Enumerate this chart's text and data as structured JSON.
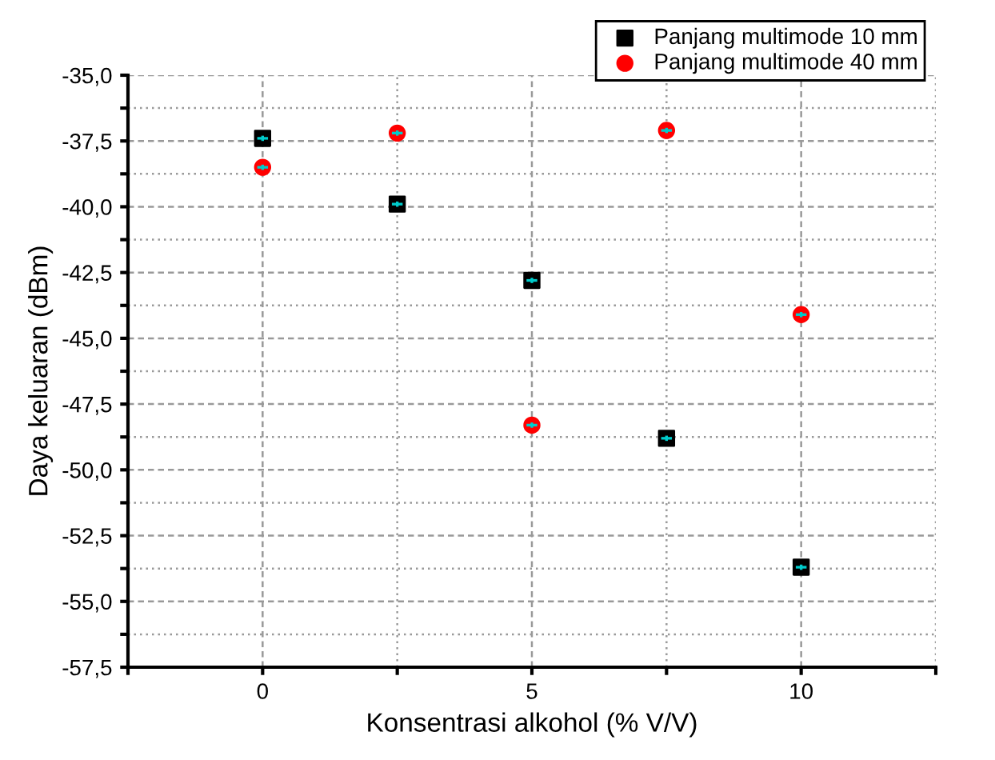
{
  "chart_data": {
    "type": "scatter",
    "xlabel": "Konsentrasi alkohol (% V/V)",
    "ylabel": "Daya keluaran (dBm)",
    "x": [
      0,
      2.5,
      5,
      7.5,
      10
    ],
    "series": [
      {
        "name": "Panjang multimode 10 mm",
        "color": "#000000",
        "marker": "square",
        "values": [
          -37.4,
          -39.9,
          -42.8,
          -48.8,
          -53.7
        ],
        "errors": [
          0.1,
          0.1,
          0.1,
          0.1,
          0.1
        ],
        "xerrors": [
          0.1,
          0.1,
          0.1,
          0.1,
          0.1
        ]
      },
      {
        "name": "Panjang multimode 40 mm",
        "color": "#ff0000",
        "marker": "circle",
        "values": [
          -38.5,
          -37.2,
          -48.3,
          -37.1,
          -44.1
        ],
        "errors": [
          0.1,
          0.1,
          0.1,
          0.1,
          0.1
        ],
        "xerrors": [
          0.1,
          0.1,
          0.1,
          0.1,
          0.1
        ]
      }
    ],
    "xlim": [
      -2.5,
      12.5
    ],
    "xticks": [
      {
        "value": -2.5,
        "label": null
      },
      0,
      {
        "value": 2.5,
        "label": null
      },
      5,
      {
        "value": 7.5,
        "label": null
      },
      10,
      {
        "value": 12.5,
        "label": null
      }
    ],
    "ylim": [
      -57.5,
      -35
    ],
    "yticks": [
      {
        "value": -57.5,
        "label": "-57,5"
      },
      {
        "value": -56.25,
        "label": null
      },
      {
        "value": -55,
        "label": "-55,0"
      },
      {
        "value": -53.75,
        "label": null
      },
      {
        "value": -52.5,
        "label": "-52,5"
      },
      {
        "value": -51.25,
        "label": null
      },
      {
        "value": -50,
        "label": "-50,0"
      },
      {
        "value": -48.75,
        "label": null
      },
      {
        "value": -47.5,
        "label": "-47,5"
      },
      {
        "value": -46.25,
        "label": null
      },
      {
        "value": -45,
        "label": "-45,0"
      },
      {
        "value": -43.75,
        "label": null
      },
      {
        "value": -42.5,
        "label": "-42,5"
      },
      {
        "value": -41.25,
        "label": null
      },
      {
        "value": -40,
        "label": "-40,0"
      },
      {
        "value": -38.75,
        "label": null
      },
      {
        "value": -37.5,
        "label": "-37,5"
      },
      {
        "value": -36.25,
        "label": null
      },
      {
        "value": -35,
        "label": "-35,0"
      }
    ],
    "grid": true,
    "legend": "top right"
  }
}
